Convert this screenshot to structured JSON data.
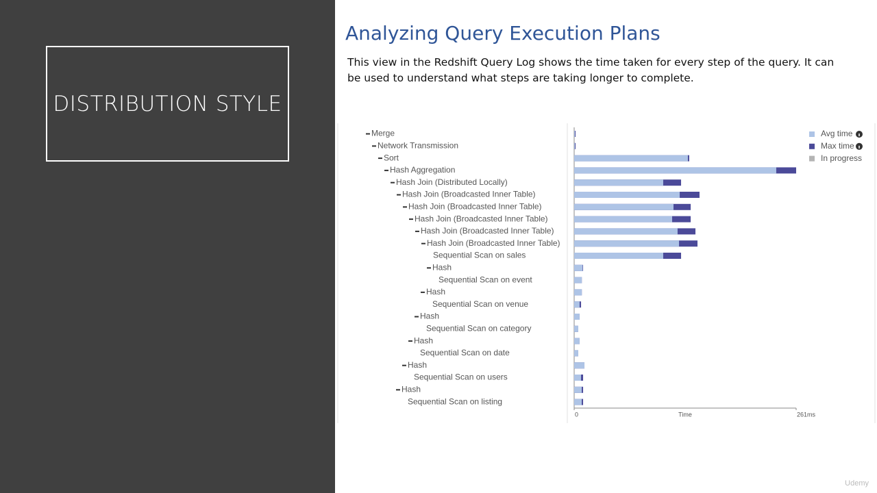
{
  "slide": {
    "section": "DISTRIBUTION STYLE",
    "title": "Analyzing Query Execution Plans",
    "body": "This view in the Redshift Query Log shows the time taken for every step of the query. It can be used to understand what steps are taking longer to complete.",
    "watermark": "Udemy"
  },
  "chart_data": {
    "type": "bar",
    "orientation": "horizontal",
    "categories": [
      "Merge",
      "Network Transmission",
      "Sort",
      "Hash Aggregation",
      "Hash Join (Distributed Locally)",
      "Hash Join (Broadcasted Inner Table)",
      "Hash Join (Broadcasted Inner Table)",
      "Hash Join (Broadcasted Inner Table)",
      "Hash Join (Broadcasted Inner Table)",
      "Hash Join (Broadcasted Inner Table)",
      "Sequential Scan on sales",
      "Hash",
      "Sequential Scan on event",
      "Hash",
      "Sequential Scan on venue",
      "Hash",
      "Sequential Scan on category",
      "Hash",
      "Sequential Scan on date",
      "Hash",
      "Sequential Scan on users",
      "Hash",
      "Sequential Scan on listing"
    ],
    "series": [
      {
        "name": "Avg time",
        "color": "#aec4e6",
        "values": [
          0.8,
          0.8,
          133.7,
          237.6,
          104.7,
          124.1,
          116.8,
          115.2,
          121.6,
          123.3,
          104.7,
          10,
          8.9,
          8.9,
          6.4,
          6.4,
          4.8,
          6.4,
          4.8,
          12.1,
          8.1,
          8.9,
          8.9
        ]
      },
      {
        "name": "Max time",
        "color": "#4b4a99",
        "values": [
          1.6,
          1.6,
          135.3,
          261,
          125.7,
          147.4,
          137,
          137,
          142.6,
          145,
          125.7,
          10.5,
          9,
          9,
          8.1,
          6.4,
          4.8,
          6.4,
          4.8,
          12.1,
          10.5,
          10.5,
          10.5
        ]
      },
      {
        "name": "In progress",
        "color": "#b4b4b4",
        "values": [
          null,
          null,
          null,
          null,
          null,
          null,
          null,
          null,
          null,
          null,
          null,
          null,
          null,
          null,
          null,
          null,
          null,
          null,
          null,
          null,
          null,
          null,
          null
        ]
      }
    ],
    "xlabel": "Time",
    "xlim": [
      0,
      261
    ],
    "xticks": [
      0,
      {
        "value": 261,
        "label": "261ms"
      }
    ],
    "grid": false
  }
}
